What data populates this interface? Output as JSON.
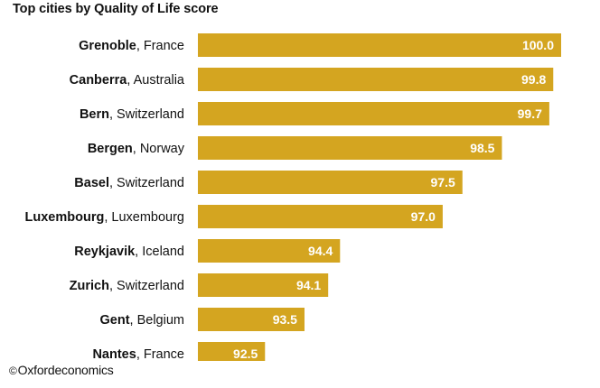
{
  "chart_data": {
    "type": "bar",
    "orientation": "horizontal",
    "title": "Top cities by Quality of Life score",
    "categories": [
      {
        "city": "Grenoble",
        "country": ", France"
      },
      {
        "city": "Canberra",
        "country": ", Australia"
      },
      {
        "city": "Bern",
        "country": ", Switzerland"
      },
      {
        "city": "Bergen",
        "country": ", Norway"
      },
      {
        "city": "Basel",
        "country": ", Switzerland"
      },
      {
        "city": "Luxembourg",
        "country": ", Luxembourg"
      },
      {
        "city": "Reykjavik",
        "country": ", Iceland"
      },
      {
        "city": "Zurich",
        "country": ", Switzerland"
      },
      {
        "city": "Gent",
        "country": ", Belgium"
      },
      {
        "city": "Nantes",
        "country": ", France"
      }
    ],
    "values": [
      100.0,
      99.8,
      99.7,
      98.5,
      97.5,
      97.0,
      94.4,
      94.1,
      93.5,
      92.5
    ],
    "value_labels": [
      "100.0",
      "99.8",
      "99.7",
      "98.5",
      "97.5",
      "97.0",
      "94.4",
      "94.1",
      "93.5",
      "92.5"
    ],
    "xlim": [
      90.8,
      100.0
    ],
    "xlabel": "",
    "ylabel": "",
    "grid": false,
    "bar_color": "#D4A520",
    "value_label_color": "#FFFFFF"
  },
  "footer": {
    "copyright_symbol": "©",
    "credit_text": "Oxfordeconomics"
  }
}
